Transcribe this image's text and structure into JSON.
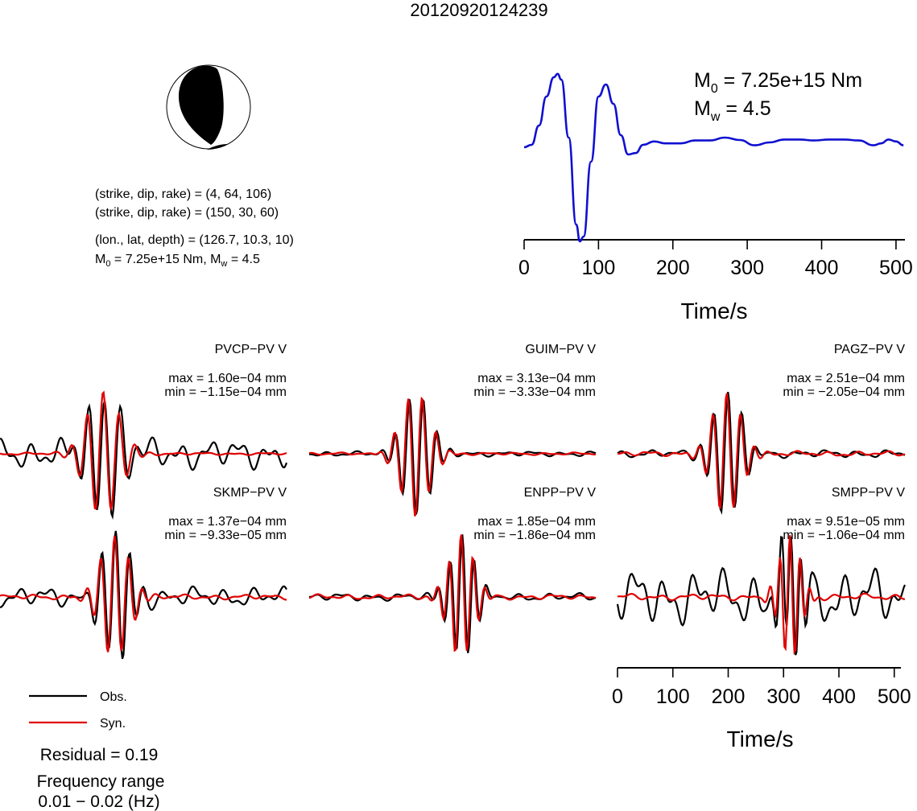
{
  "title": "20120920124239",
  "beachball": {
    "text_lines": [
      "(strike, dip, rake) = (4, 64, 106)",
      "(strike, dip, rake) = (150, 30, 60)",
      "(lon., lat, depth) = (126.7, 10.3, 10)"
    ],
    "m0_main": "M",
    "m0_sub": "0",
    "m0_rest": " = 7.25e+15 Nm, M",
    "mw_sub": "w",
    "mw_rest": " = 4.5"
  },
  "stf": {
    "m0_main": "M",
    "m0_sub": "0",
    "m0_value": " = 7.25e+15 Nm",
    "mw_main": "M",
    "mw_sub": "w",
    "mw_value": " = 4.5"
  },
  "legend": {
    "obs": "Obs.",
    "syn": "Syn.",
    "obs_color": "#000000",
    "syn_color": "#e00000"
  },
  "residual": "Residual = 0.19",
  "freq_label": "Frequency range",
  "freq_value": "0.01 − 0.02 (Hz)",
  "chart_data": [
    {
      "type": "line",
      "name": "source-time-function",
      "xlabel": "Time/s",
      "xlim": [
        0,
        512
      ],
      "x_ticks": [
        0,
        100,
        200,
        300,
        400,
        500
      ],
      "x_tick_labels": [
        "0",
        "100",
        "200",
        "300",
        "400",
        "500"
      ],
      "color": "#1010d0",
      "x": [
        0,
        10,
        20,
        30,
        40,
        45,
        50,
        60,
        70,
        75,
        80,
        90,
        100,
        110,
        120,
        130,
        140,
        150,
        160,
        175,
        190,
        210,
        230,
        250,
        270,
        290,
        310,
        330,
        350,
        370,
        390,
        410,
        430,
        450,
        470,
        480,
        490,
        500,
        510
      ],
      "y": [
        0.0,
        0.05,
        0.45,
        1.05,
        1.45,
        1.52,
        1.4,
        0.2,
        -1.6,
        -1.95,
        -1.85,
        -0.3,
        1.05,
        1.3,
        0.9,
        0.25,
        -0.15,
        -0.12,
        0.05,
        0.12,
        0.08,
        0.08,
        0.14,
        0.14,
        0.2,
        0.15,
        0.04,
        0.1,
        0.16,
        0.16,
        0.14,
        0.16,
        0.16,
        0.14,
        0.04,
        0.08,
        0.16,
        0.12,
        0.04
      ]
    },
    {
      "type": "line",
      "name": "waveform-comparison",
      "series": [
        {
          "name": "Obs."
        },
        {
          "name": "Syn."
        }
      ],
      "panels": [
        {
          "station": "PVCP−PV V",
          "max": "max = 1.60e−04 mm",
          "min": "min = −1.15e−04 mm"
        },
        {
          "station": "GUIM−PV V",
          "max": "max = 3.13e−04 mm",
          "min": "min = −3.33e−04 mm"
        },
        {
          "station": "PAGZ−PV V",
          "max": "max = 2.51e−04 mm",
          "min": "min = −2.05e−04 mm"
        },
        {
          "station": "SKMP−PV V",
          "max": "max = 1.37e−04 mm",
          "min": "min = −9.33e−05 mm"
        },
        {
          "station": "ENPP−PV V",
          "max": "max = 1.85e−04 mm",
          "min": "min = −1.86e−04 mm"
        },
        {
          "station": "SMPP−PV V",
          "max": "max = 9.51e−05 mm",
          "min": "min = −1.06e−04 mm"
        }
      ],
      "xlabel": "Time/s",
      "xlim": [
        0,
        512
      ],
      "x_ticks": [
        0,
        100,
        200,
        300,
        400,
        500
      ],
      "x_tick_labels": [
        "0",
        "100",
        "200",
        "300",
        "400",
        "500"
      ]
    }
  ]
}
